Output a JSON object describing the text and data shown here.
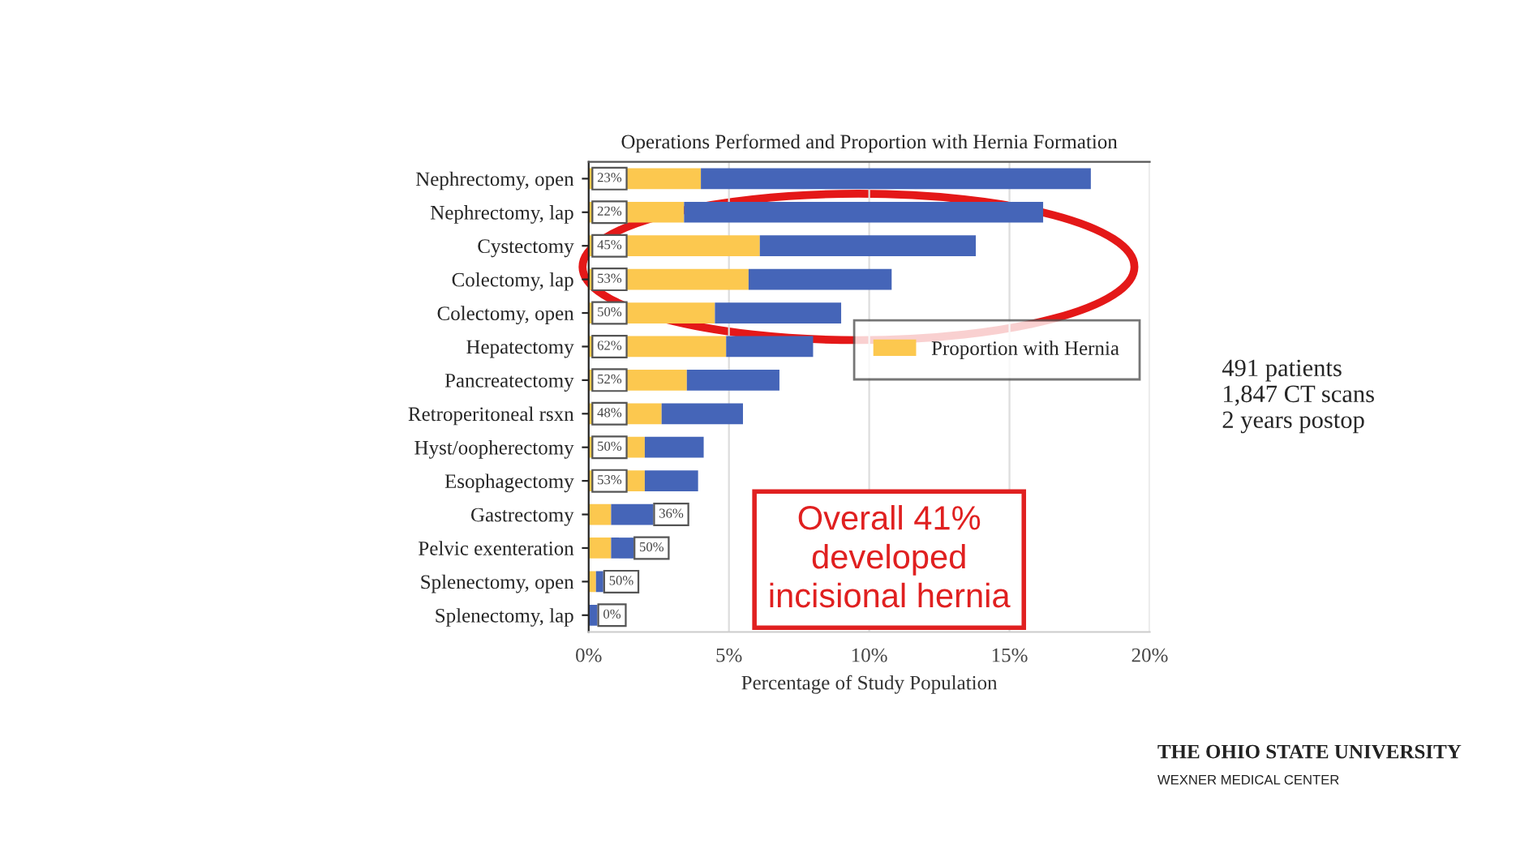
{
  "chart_data": {
    "type": "bar",
    "orientation": "horizontal",
    "stacked": true,
    "title": "Operations Performed and Proportion with Hernia Formation",
    "xlabel": "Percentage of Study Population",
    "categories": [
      "Nephrectomy, open",
      "Nephrectomy, lap",
      "Cystectomy",
      "Colectomy, lap",
      "Colectomy, open",
      "Hepatectomy",
      "Pancreatectomy",
      "Retroperitoneal rsxn",
      "Hyst/oopherectomy",
      "Esophagectomy",
      "Gastrectomy",
      "Pelvic exenteration",
      "Splenectomy, open",
      "Splenectomy, lap"
    ],
    "series": [
      {
        "name": "Proportion with Hernia",
        "color": "#fcc84f",
        "values": [
          4.0,
          3.4,
          6.1,
          5.7,
          4.5,
          4.9,
          3.5,
          2.6,
          2.0,
          2.0,
          0.8,
          0.8,
          0.26,
          0
        ]
      },
      {
        "color": "#4565b8",
        "values": [
          13.9,
          12.8,
          7.7,
          5.1,
          4.5,
          3.1,
          3.3,
          2.9,
          2.1,
          1.9,
          1.5,
          0.8,
          0.26,
          0.31
        ]
      }
    ],
    "xlim": [
      0,
      20
    ],
    "xticks": [
      {
        "value": 0,
        "label": "0%"
      },
      {
        "value": 5,
        "label": "5%"
      },
      {
        "value": 10,
        "label": "10%"
      },
      {
        "value": 15,
        "label": "15%"
      },
      {
        "value": 20,
        "label": "20%"
      }
    ],
    "grid": "x",
    "legend": "right",
    "annotations": [
      {
        "text": "23%",
        "x": 0.1,
        "y": "Nephrectomy, open"
      },
      {
        "text": "22%",
        "x": 0.1,
        "y": "Nephrectomy, lap"
      },
      {
        "text": "45%",
        "x": 0.1,
        "y": "Cystectomy"
      },
      {
        "text": "53%",
        "x": 0.1,
        "y": "Colectomy, lap"
      },
      {
        "text": "50%",
        "x": 0.1,
        "y": "Colectomy, open"
      },
      {
        "text": "62%",
        "x": 0.1,
        "y": "Hepatectomy"
      },
      {
        "text": "52%",
        "x": 0.1,
        "y": "Pancreatectomy"
      },
      {
        "text": "48%",
        "x": 0.1,
        "y": "Retroperitoneal rsxn"
      },
      {
        "text": "50%",
        "x": 0.1,
        "y": "Hyst/oopherectomy"
      },
      {
        "text": "53%",
        "x": 0.1,
        "y": "Esophagectomy"
      },
      {
        "text": "36%",
        "x": 2.3,
        "y": "Gastrectomy"
      },
      {
        "text": "50%",
        "x": 1.6,
        "y": "Pelvic exenteration"
      },
      {
        "text": "50%",
        "x": 0.52,
        "y": "Splenectomy, open"
      },
      {
        "text": "0%",
        "x": 0.31,
        "y": "Splenectomy, lap"
      },
      "Overall 41%\ndeveloped\nincisional hernia",
      "491 patients\n1,847 CT scans\n2 years postop",
      "THE OHIO STATE UNIVERSITY",
      "WEXNER MEDICAL CENTER"
    ]
  }
}
